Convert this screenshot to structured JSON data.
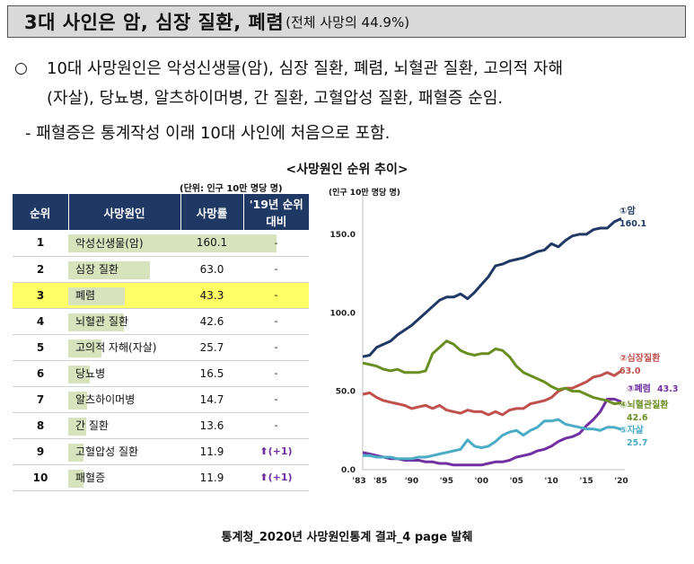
{
  "header": {
    "title": "3대 사인은 암, 심장 질환, 폐렴",
    "subtitle": "(전체 사망의 44.9%)"
  },
  "bullet": {
    "marker": "○",
    "line1": "10대 사망원인은 악성신생물(암), 심장 질환, 폐렴, 뇌혈관 질환, 고의적 자해",
    "line2": "(자살), 당뇨병, 알츠하이머병, 간 질환, 고혈압성 질환, 패혈증 순임.",
    "note": "- 패혈증은 통계작성 이래 10대 사인에 처음으로 포함."
  },
  "chart_title": "<사망원인 순위 추이>",
  "table": {
    "unit_note": "(단위: 인구 10만 명당 명)",
    "headers": [
      "순위",
      "사망원인",
      "사망률",
      "'19년 순위 대비"
    ],
    "rows": [
      {
        "rank": "1",
        "cause": "악성신생물(암)",
        "rate": "160.1",
        "rate_value": 160.1,
        "change": "-"
      },
      {
        "rank": "2",
        "cause": "심장 질환",
        "rate": "63.0",
        "rate_value": 63.0,
        "change": "-"
      },
      {
        "rank": "3",
        "cause": "폐렴",
        "rate": "43.3",
        "rate_value": 43.3,
        "change": "-"
      },
      {
        "rank": "4",
        "cause": "뇌혈관 질환",
        "rate": "42.6",
        "rate_value": 42.6,
        "change": "-"
      },
      {
        "rank": "5",
        "cause": "고의적 자해(자살)",
        "rate": "25.7",
        "rate_value": 25.7,
        "change": "-"
      },
      {
        "rank": "6",
        "cause": "당뇨병",
        "rate": "16.5",
        "rate_value": 16.5,
        "change": "-"
      },
      {
        "rank": "7",
        "cause": "알츠하이머병",
        "rate": "14.7",
        "rate_value": 14.7,
        "change": "-"
      },
      {
        "rank": "8",
        "cause": "간 질환",
        "rate": "13.6",
        "rate_value": 13.6,
        "change": "-"
      },
      {
        "rank": "9",
        "cause": "고혈압성 질환",
        "rate": "11.9",
        "rate_value": 11.9,
        "change": "⬆(+1)"
      },
      {
        "rank": "10",
        "cause": "패혈증",
        "rate": "11.9",
        "rate_value": 11.9,
        "change": "⬆(+1)"
      }
    ],
    "highlight_rank": "3"
  },
  "chart_data": {
    "type": "line",
    "title": "",
    "ylabel": "(인구 10만 명당 명)",
    "xlabel": "",
    "ylim": [
      0,
      170
    ],
    "yticks": [
      "0.0",
      "50.0",
      "100.0",
      "150.0"
    ],
    "ytick_values": [
      0,
      50,
      100,
      150
    ],
    "xtick_labels": [
      "'83",
      "'85",
      "'90",
      "'95",
      "'00",
      "'05",
      "'10",
      "'15",
      "'20"
    ],
    "xtick_values": [
      1983,
      1985,
      1990,
      1995,
      2000,
      2005,
      2010,
      2015,
      2020
    ],
    "x": [
      1983,
      1984,
      1985,
      1986,
      1987,
      1988,
      1989,
      1990,
      1991,
      1992,
      1993,
      1994,
      1995,
      1996,
      1997,
      1998,
      1999,
      2000,
      2001,
      2002,
      2003,
      2004,
      2005,
      2006,
      2007,
      2008,
      2009,
      2010,
      2011,
      2012,
      2013,
      2014,
      2015,
      2016,
      2017,
      2018,
      2019,
      2020
    ],
    "grid": false,
    "series": [
      {
        "name": "①암",
        "end_label": "160.1",
        "color": "#1f3864",
        "values": [
          72,
          73,
          78,
          80,
          82,
          86,
          89,
          92,
          96,
          100,
          104,
          108,
          110,
          110,
          112,
          109,
          113,
          118,
          123,
          130,
          131,
          133,
          134,
          135,
          137,
          139,
          140,
          144,
          142,
          146,
          149,
          150,
          150,
          153,
          154,
          154,
          158,
          160.1
        ]
      },
      {
        "name": "②심장질환",
        "end_label": "63.0",
        "color": "#c0504d",
        "values": [
          48,
          49,
          46,
          44,
          43,
          42,
          41,
          39,
          40,
          41,
          39,
          41,
          38,
          37,
          36,
          38,
          37,
          37,
          35,
          37,
          35,
          38,
          39,
          39,
          42,
          43,
          44,
          46,
          50,
          52,
          52,
          54,
          56,
          59,
          60,
          62,
          60,
          63.0
        ]
      },
      {
        "name": "③폐렴",
        "end_label": "43.3",
        "color": "#7030a0",
        "values": [
          11,
          10,
          9,
          8,
          7,
          7,
          6,
          6,
          6,
          5,
          5,
          4,
          4,
          3,
          3,
          3,
          3,
          3,
          4,
          5,
          5,
          6,
          8,
          9,
          10,
          12,
          13,
          15,
          18,
          20,
          21,
          23,
          28,
          32,
          37,
          45,
          45,
          43.3
        ]
      },
      {
        "name": "④뇌혈관질환",
        "end_label": "42.6",
        "color": "#6b8e23",
        "values": [
          68,
          67,
          66,
          64,
          63,
          64,
          62,
          62,
          62,
          63,
          74,
          78,
          82,
          80,
          76,
          74,
          73,
          74,
          74,
          77,
          76,
          72,
          66,
          62,
          60,
          58,
          56,
          53,
          51,
          52,
          50,
          50,
          48,
          46,
          45,
          44,
          42,
          42.6
        ]
      },
      {
        "name": "⑤자살",
        "end_label": "25.7",
        "color": "#4bacc6",
        "values": [
          9,
          9,
          8,
          8,
          8,
          7,
          7,
          7,
          8,
          8,
          9,
          10,
          11,
          12,
          13,
          19,
          15,
          14,
          15,
          18,
          22,
          24,
          25,
          22,
          25,
          27,
          31,
          31,
          32,
          29,
          28,
          27,
          26,
          26,
          25,
          27,
          27,
          25.7
        ]
      }
    ]
  },
  "source": "통계청_2020년 사망원인통계 결과_4 page 발췌"
}
